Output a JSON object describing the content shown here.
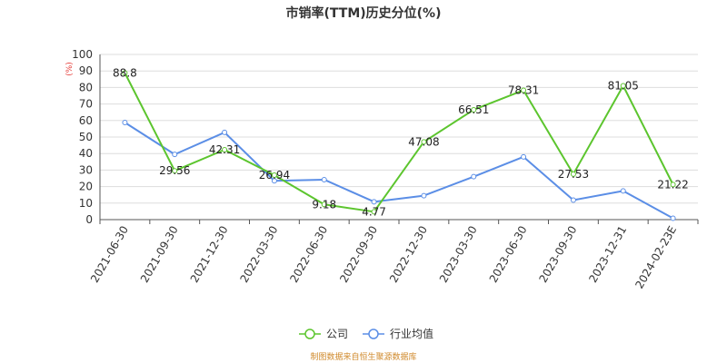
{
  "chart_data": {
    "type": "line",
    "title": "市销率(TTM)历史分位(%)",
    "ylabel": "(%)",
    "xlabel": "",
    "ylim": [
      0,
      100
    ],
    "yticks": [
      0,
      10,
      20,
      30,
      40,
      50,
      60,
      70,
      80,
      90,
      100
    ],
    "categories": [
      "2021-06-30",
      "2021-09-30",
      "2021-12-30",
      "2022-03-30",
      "2022-06-30",
      "2022-09-30",
      "2022-12-30",
      "2023-03-30",
      "2023-06-30",
      "2023-09-30",
      "2023-12-31",
      "2024-02-23E"
    ],
    "series": [
      {
        "name": "公司",
        "color": "#5cc52e",
        "values": [
          88.8,
          29.56,
          42.31,
          26.94,
          9.18,
          4.77,
          47.08,
          66.51,
          78.31,
          27.53,
          81.05,
          21.22
        ],
        "labels": [
          "88.8",
          "29.56",
          "42.31",
          "26.94",
          "9.18",
          "4.77",
          "47.08",
          "66.51",
          "78.31",
          "27.53",
          "81.05",
          "21.22"
        ]
      },
      {
        "name": "行业均值",
        "color": "#5b8ee6",
        "values": [
          58.8,
          39.5,
          52.8,
          23.5,
          24.2,
          10.8,
          14.5,
          26.0,
          38.0,
          11.8,
          17.4,
          0.8
        ]
      }
    ],
    "grid": true,
    "legend_position": "bottom-center"
  },
  "footer": {
    "source": "制图数据来自恒生聚源数据库"
  }
}
